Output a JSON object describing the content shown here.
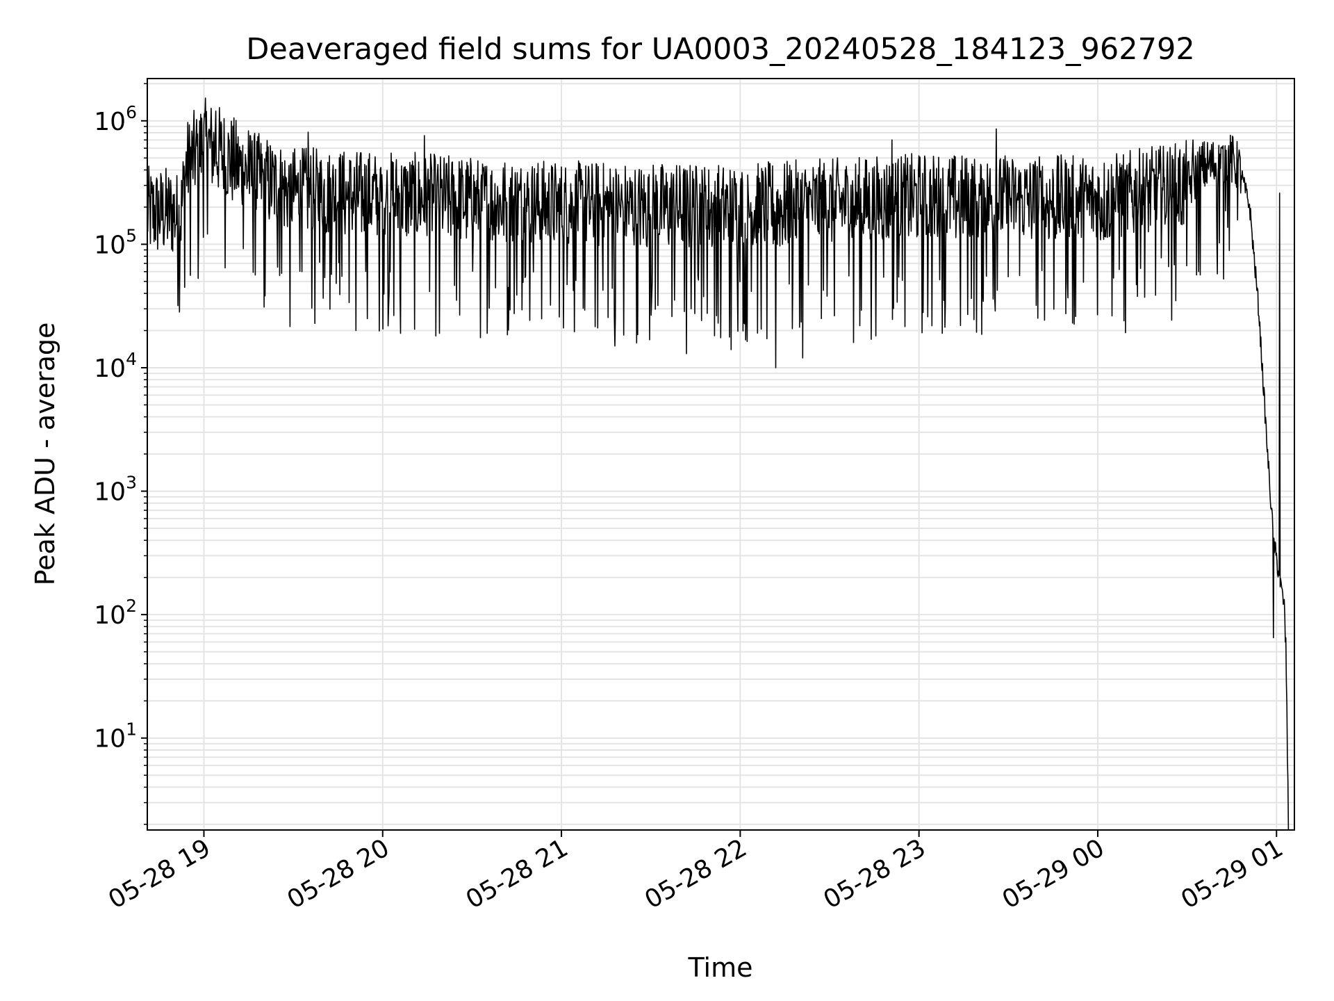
{
  "chart_data": {
    "type": "line",
    "title": "Deaveraged field sums for UA0003_20240528_184123_962792",
    "xlabel": "Time",
    "ylabel": "Peak ADU - average",
    "yscale": "log",
    "ylim": [
      1.8,
      2200000
    ],
    "xlim": [
      "2024-05-28 18:41",
      "2024-05-29 01:06"
    ],
    "grid": "major and minor",
    "x_ticks": [
      {
        "t": "2024-05-28 19:00",
        "label": "05-28 19"
      },
      {
        "t": "2024-05-28 20:00",
        "label": "05-28 20"
      },
      {
        "t": "2024-05-28 21:00",
        "label": "05-28 21"
      },
      {
        "t": "2024-05-28 22:00",
        "label": "05-28 22"
      },
      {
        "t": "2024-05-28 23:00",
        "label": "05-28 23"
      },
      {
        "t": "2024-05-29 00:00",
        "label": "05-29 00"
      },
      {
        "t": "2024-05-29 01:00",
        "label": "05-29 01"
      }
    ],
    "y_ticks": [
      {
        "value": 10,
        "base": "10",
        "exp": "1"
      },
      {
        "value": 100,
        "base": "10",
        "exp": "2"
      },
      {
        "value": 1000,
        "base": "10",
        "exp": "3"
      },
      {
        "value": 10000,
        "base": "10",
        "exp": "4"
      },
      {
        "value": 100000,
        "base": "10",
        "exp": "5"
      },
      {
        "value": 1000000,
        "base": "10",
        "exp": "6"
      }
    ],
    "series": [
      {
        "color": "#000000",
        "noisy": true,
        "baseline": [
          {
            "t": "2024-05-28 18:41",
            "y": 180000
          },
          {
            "t": "2024-05-28 18:50",
            "y": 180000
          },
          {
            "t": "2024-05-28 18:52",
            "y": 150000
          },
          {
            "t": "2024-05-28 18:54",
            "y": 420000
          },
          {
            "t": "2024-05-28 19:00",
            "y": 650000
          },
          {
            "t": "2024-05-28 19:06",
            "y": 550000
          },
          {
            "t": "2024-05-28 19:15",
            "y": 360000
          },
          {
            "t": "2024-05-28 19:30",
            "y": 260000
          },
          {
            "t": "2024-05-28 20:00",
            "y": 240000
          },
          {
            "t": "2024-05-28 21:00",
            "y": 200000
          },
          {
            "t": "2024-05-28 22:00",
            "y": 190000
          },
          {
            "t": "2024-05-28 23:00",
            "y": 230000
          },
          {
            "t": "2024-05-29 00:00",
            "y": 220000
          },
          {
            "t": "2024-05-29 00:30",
            "y": 290000
          },
          {
            "t": "2024-05-29 00:35",
            "y": 420000
          },
          {
            "t": "2024-05-29 00:45",
            "y": 480000
          },
          {
            "t": "2024-05-29 00:48",
            "y": 380000
          },
          {
            "t": "2024-05-29 00:51",
            "y": 200000
          },
          {
            "t": "2024-05-29 00:54",
            "y": 30000
          },
          {
            "t": "2024-05-29 00:57",
            "y": 2000
          },
          {
            "t": "2024-05-29 00:59",
            "y": 400
          },
          {
            "t": "2024-05-29 01:02",
            "y": 140
          },
          {
            "t": "2024-05-29 01:03",
            "y": 100
          },
          {
            "t": "2024-05-29 01:04",
            "y": 2
          }
        ],
        "peaks": [
          {
            "t": "2024-05-28 19:04",
            "y": 1200000
          },
          {
            "t": "2024-05-28 19:15",
            "y": 830000
          },
          {
            "t": "2024-05-28 19:35",
            "y": 810000
          },
          {
            "t": "2024-05-28 20:14",
            "y": 760000
          },
          {
            "t": "2024-05-28 22:51",
            "y": 700000
          },
          {
            "t": "2024-05-28 23:26",
            "y": 860000
          },
          {
            "t": "2024-05-29 00:32",
            "y": 700000
          },
          {
            "t": "2024-05-29 01:01",
            "y": 260000
          }
        ],
        "dips": [
          {
            "t": "2024-05-28 19:51",
            "y": 20000
          },
          {
            "t": "2024-05-28 20:06",
            "y": 19000
          },
          {
            "t": "2024-05-28 20:19",
            "y": 19000
          },
          {
            "t": "2024-05-28 20:35",
            "y": 19000
          },
          {
            "t": "2024-05-28 21:18",
            "y": 15000
          },
          {
            "t": "2024-05-28 21:42",
            "y": 13000
          },
          {
            "t": "2024-05-28 21:57",
            "y": 14000
          },
          {
            "t": "2024-05-28 22:12",
            "y": 10000
          },
          {
            "t": "2024-05-28 22:21",
            "y": 12000
          },
          {
            "t": "2024-05-28 22:38",
            "y": 16000
          },
          {
            "t": "2024-05-28 22:44",
            "y": 17000
          },
          {
            "t": "2024-05-28 23:14",
            "y": 22000
          },
          {
            "t": "2024-05-29 00:59",
            "y": 65
          },
          {
            "t": "2024-05-29 01:03",
            "y": 60
          }
        ]
      }
    ]
  }
}
